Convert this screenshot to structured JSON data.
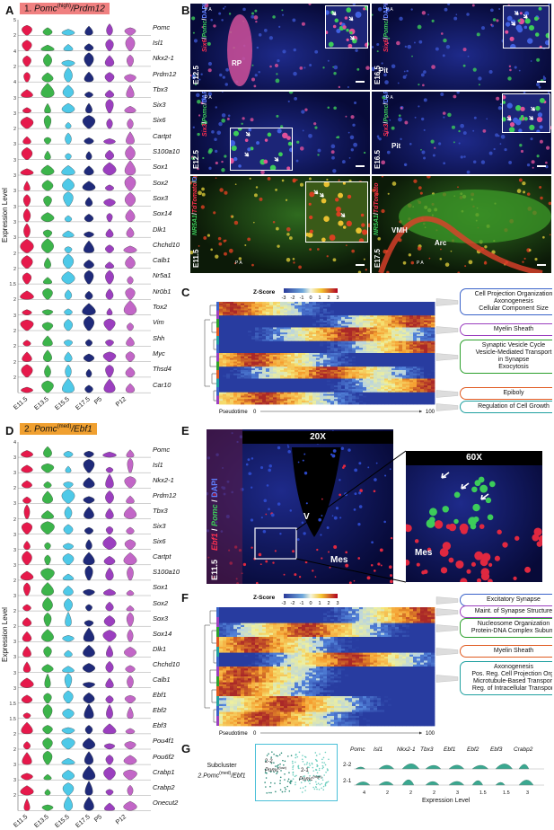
{
  "panelA": {
    "letter": "A",
    "title_prefix": "1. ",
    "title_gene": "Pomc",
    "title_sup": "(high)",
    "title_suffix": "/Prdm12",
    "title_color": "#f08080",
    "genes": [
      "Pomc",
      "Isl1",
      "Nkx2-1",
      "Prdm12",
      "Tbx3",
      "Six3",
      "Six6",
      "Cartpt",
      "S100a10",
      "Sox1",
      "Sox2",
      "Sox3",
      "Sox14",
      "Dlk1",
      "Chchd10",
      "Calb1",
      "Nr5a1",
      "Nr0b1",
      "Tox2",
      "Vim",
      "Shh",
      "Myc",
      "Thsd4",
      "Car10"
    ],
    "tick_top": [
      "5",
      "2",
      "4",
      "2",
      "4",
      "3",
      "3",
      "2",
      "3",
      "3",
      "3",
      "3",
      "3",
      "3",
      "3",
      "2",
      "2",
      "1.5",
      "2",
      "3",
      "2",
      "2",
      "2",
      "2"
    ],
    "ylabel": "Expression Level",
    "xlabels": [
      "E11.5",
      "E13.5",
      "E15.5",
      "E17.5",
      "P5",
      "P12"
    ]
  },
  "panelD": {
    "letter": "D",
    "title_prefix": "2. ",
    "title_gene": "Pomc",
    "title_sup": "(med)",
    "title_suffix": "/Ebf1",
    "title_color": "#f0a030",
    "genes": [
      "Pomc",
      "Isl1",
      "Nkx2-1",
      "Prdm12",
      "Tbx3",
      "Six3",
      "Six6",
      "Cartpt",
      "S100a10",
      "Sox1",
      "Sox2",
      "Sox3",
      "Sox14",
      "Dlk1",
      "Chchd10",
      "Calb1",
      "Ebf1",
      "Ebf2",
      "Ebf3",
      "Pou4f1",
      "Pou6f2",
      "Crabp1",
      "Crabp2",
      "Onecut2"
    ],
    "tick_top": [
      "4",
      "3",
      "3",
      "2",
      "3",
      "2",
      "3",
      "3",
      "3",
      "2",
      "3",
      "2",
      "2",
      "3",
      "3",
      "3",
      "3",
      "1.5",
      "1.5",
      "2",
      "2",
      "3",
      "3",
      "2"
    ],
    "ylabel": "Expression Level",
    "xlabels": [
      "E11.5",
      "E13.5",
      "E15.5",
      "E17.5",
      "P5",
      "P12"
    ]
  },
  "stage_colors": [
    "#e6194b",
    "#3cb44b",
    "#4ec9e8",
    "#1f2a7a",
    "#9b3fbf",
    "#c266c7"
  ],
  "panelB": {
    "letter": "B",
    "tiles": [
      {
        "stage": "E12.5",
        "probe1": "Six6",
        "probe2": "Pomc",
        "probe3": "DAPI",
        "region": "RP",
        "pa": "P A"
      },
      {
        "stage": "E16.5",
        "probe1": "Six6",
        "probe2": "Pomc",
        "probe3": "DAPI",
        "region": "Pit",
        "pa": "P A"
      },
      {
        "stage": "E12.5",
        "probe1": "Six3",
        "probe2": "Pomc",
        "probe3": "DAPI",
        "region": "",
        "pa": "P A"
      },
      {
        "stage": "E16.5",
        "probe1": "Six3",
        "probe2": "Pomc",
        "probe3": "DAPI",
        "region": "Pit",
        "pa": "P A"
      },
      {
        "stage": "E11.5",
        "probe1": "NR5A1",
        "probe2": "TdTomato",
        "probe3": "DAPI",
        "region": "",
        "pa": "P A"
      },
      {
        "stage": "E17.5",
        "probe1": "NR5A1",
        "probe2": "TdTomato",
        "probe3": "",
        "region": "VMH",
        "region2": "Arc",
        "pa": "P A"
      }
    ]
  },
  "panelC": {
    "letter": "C",
    "zscore_label": "Z-Score",
    "zscore_ticks": [
      "-3",
      "-2",
      "-1",
      "0",
      "1",
      "2",
      "3"
    ],
    "pseudotime": "Pseudotime",
    "pt_start": "0",
    "pt_end": "100",
    "go_terms": [
      {
        "lines": [
          "Cell Projection Organization",
          "Axonogenesis",
          "Cellular Component Size"
        ],
        "color": "#3a63c9"
      },
      {
        "lines": [
          "Myelin Sheath"
        ],
        "color": "#9b3fbf"
      },
      {
        "lines": [
          "Synaptic Vesicle Cycle",
          "Vesicle-Mediated Transport",
          "in Synapse",
          "Exocytosis"
        ],
        "color": "#2ca02c"
      },
      {
        "lines": [
          "Epiboly"
        ],
        "color": "#e05a20"
      },
      {
        "lines": [
          "Regulation of Cell Growth"
        ],
        "color": "#20a0a0"
      }
    ]
  },
  "panelE": {
    "letter": "E",
    "mag_low": "20X",
    "mag_high": "60X",
    "stage": "E11.5",
    "probe1": "Ebf1",
    "probe2": "Pomc",
    "probe3": "DAPI",
    "region_v": "V",
    "region_mes": "Mes",
    "region_mes2": "Mes"
  },
  "panelF": {
    "letter": "F",
    "zscore_label": "Z-Score",
    "zscore_ticks": [
      "-3",
      "-2",
      "-1",
      "0",
      "1",
      "2",
      "3"
    ],
    "pseudotime": "Pseudotime",
    "pt_start": "0",
    "pt_end": "100",
    "go_terms": [
      {
        "lines": [
          "Excitatory Synapse"
        ],
        "color": "#3a63c9"
      },
      {
        "lines": [
          "Maint. of Synapse Structure"
        ],
        "color": "#9b3fbf"
      },
      {
        "lines": [
          "Nucleosome Organization",
          "Protein-DNA Complex Subunit"
        ],
        "color": "#2ca02c"
      },
      {
        "lines": [
          "Myelin Sheath"
        ],
        "color": "#e05a20"
      },
      {
        "lines": [
          "Axonogenesis",
          "Pos. Reg. Cell Projection Org.",
          "Microtubule-Based Transport",
          "Reg. of Intracellular Transport"
        ],
        "color": "#20a0a0"
      }
    ]
  },
  "panelG": {
    "letter": "G",
    "subcluster_line1": "Subcluster",
    "subcluster_line2": "2.Pomc",
    "subcluster_sup": "(med)",
    "subcluster_line3": "/Ebf1",
    "umap_a": "2-2",
    "umap_a2": "Pomc",
    "umap_a2_sup": "(low)",
    "umap_b": "2-1",
    "umap_b2": "Pomc",
    "umap_b2_sup": "(high)",
    "genes": [
      "Pomc",
      "Isl1",
      "Nkx2-1",
      "Tbx3",
      "Ebf1",
      "Ebf2",
      "Ebf3",
      "Crabp2"
    ],
    "rows": [
      "2-2",
      "2-1"
    ],
    "xticks": [
      "4",
      "2",
      "2",
      "2",
      "3",
      "1.5",
      "1.5",
      "3"
    ],
    "xlabel": "Expression Level",
    "color": "#3aa890"
  }
}
